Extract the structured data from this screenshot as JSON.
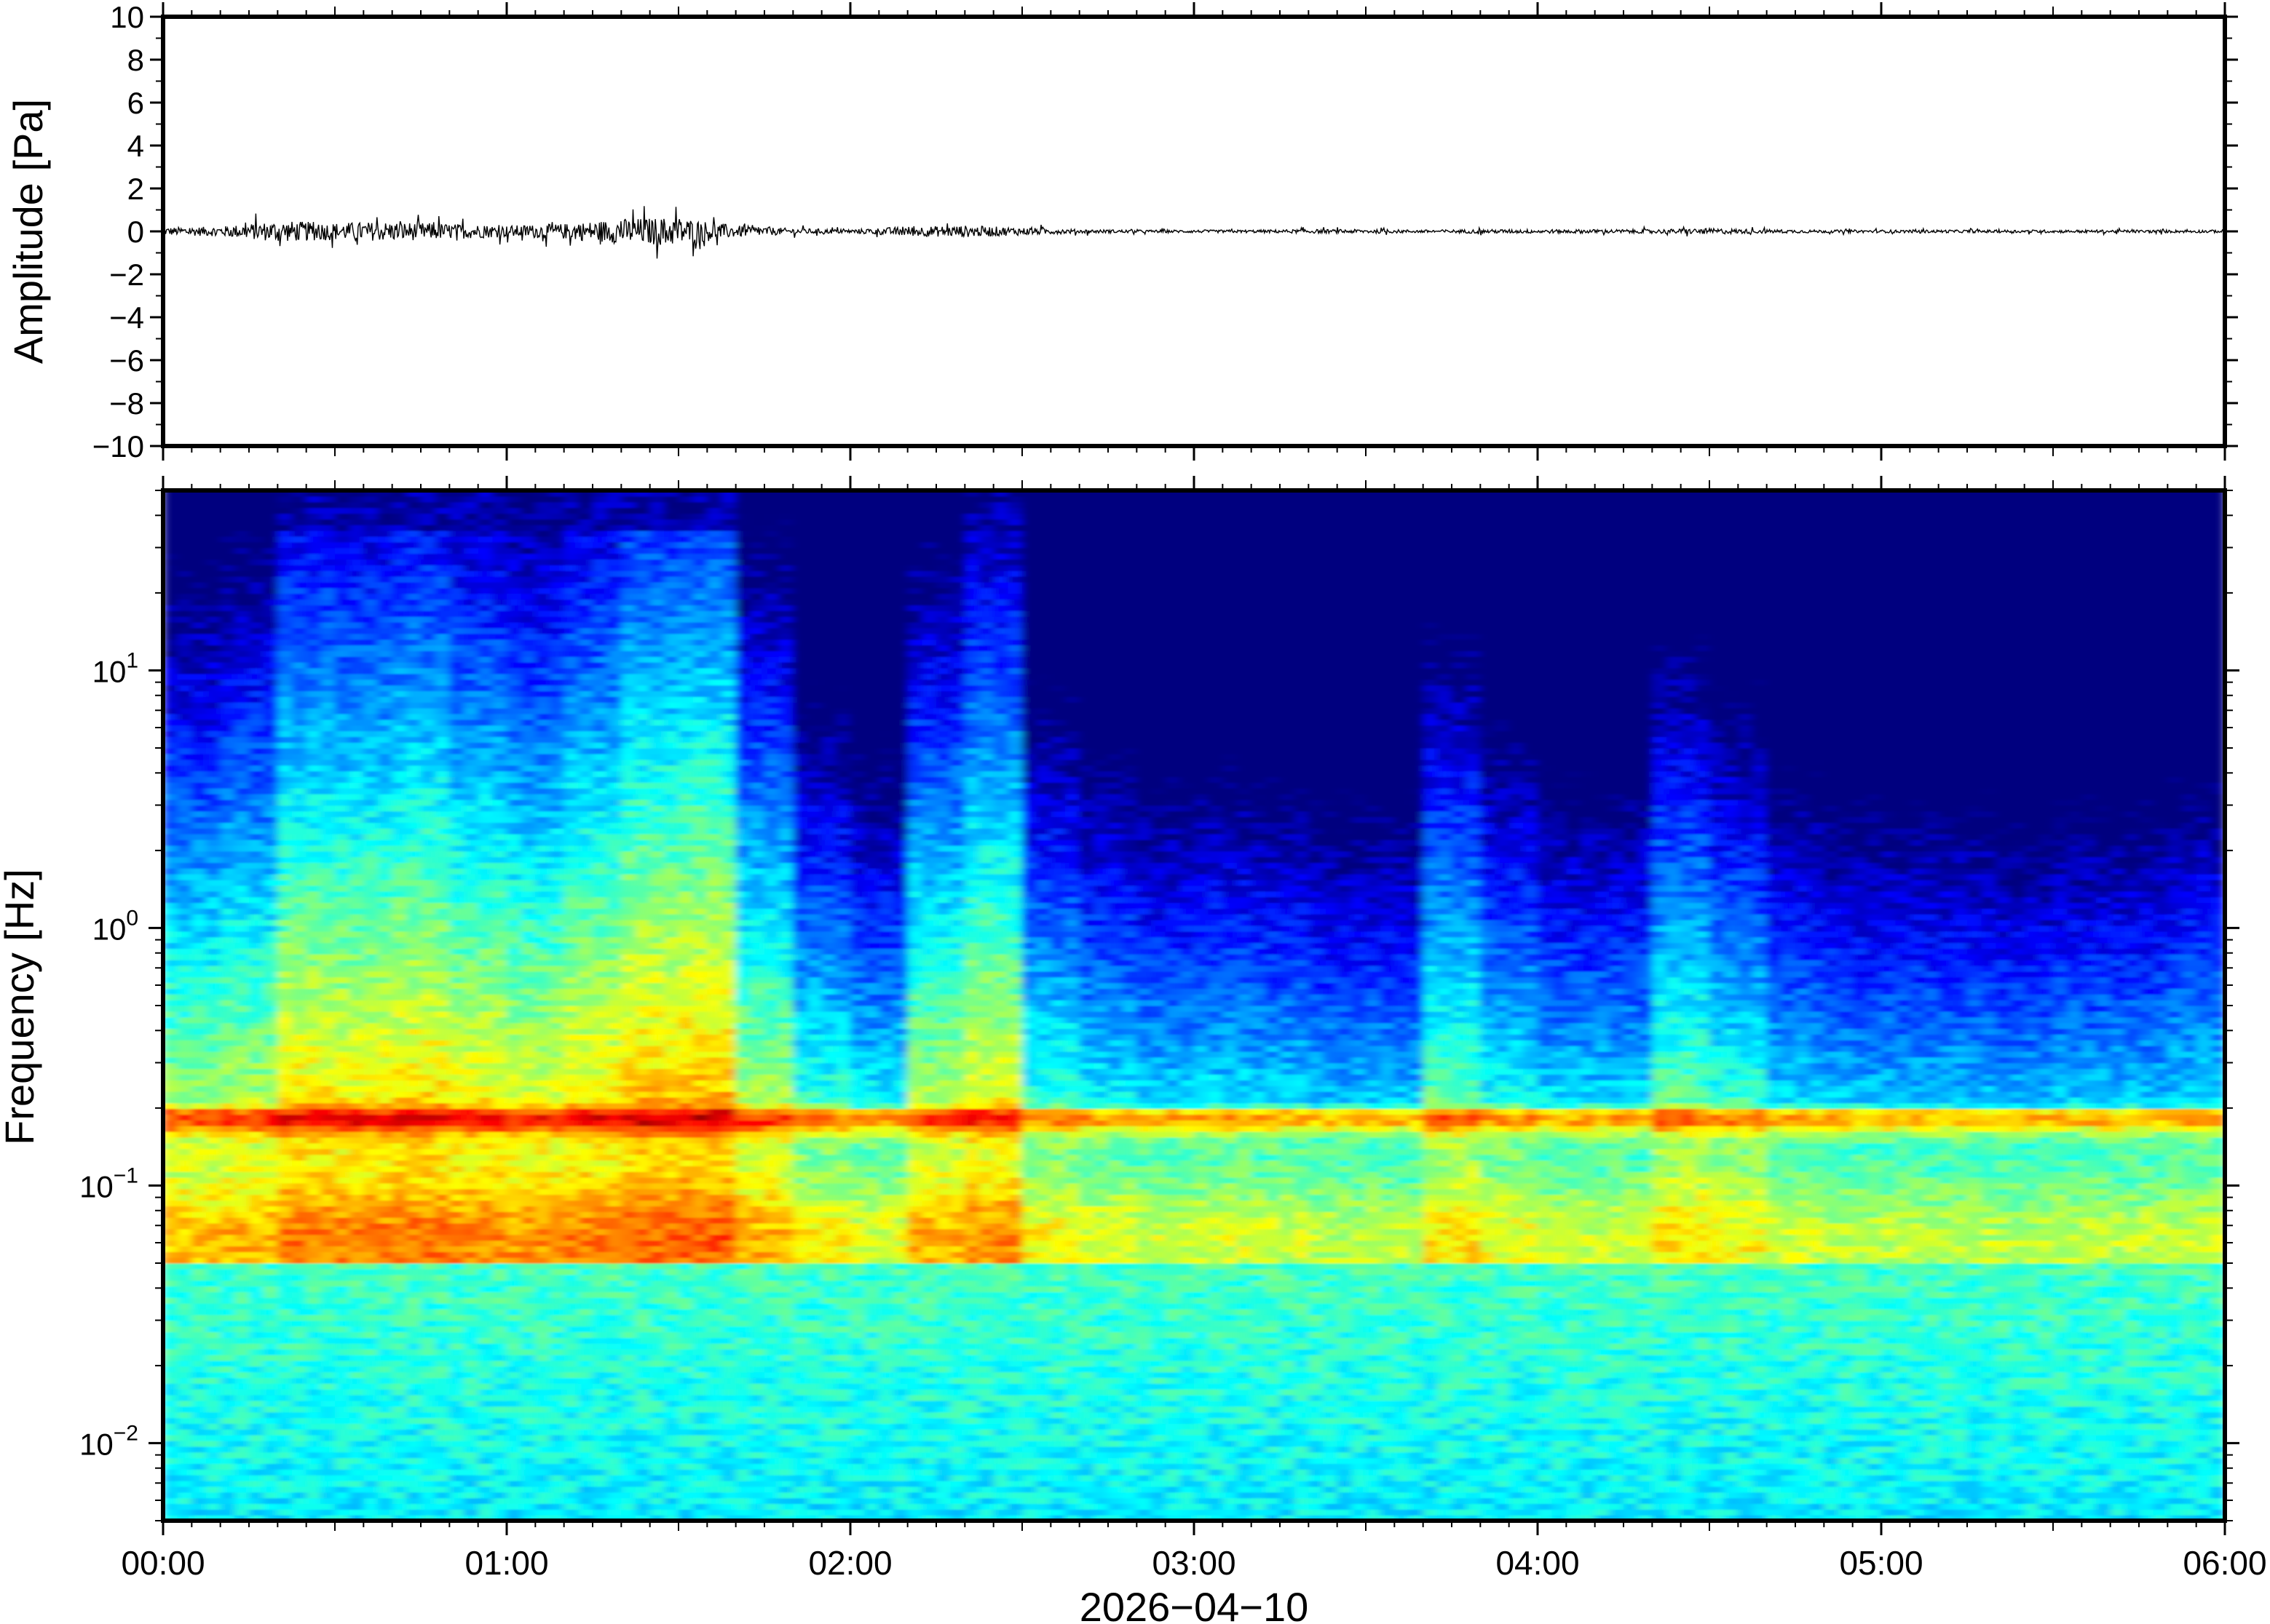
{
  "chart_data": [
    {
      "type": "line",
      "ylabel": "Amplitude [Pa]",
      "ylim": [
        -10,
        10
      ],
      "yticks": [
        10,
        8,
        6,
        4,
        2,
        0,
        -2,
        -4,
        -6,
        -8,
        -10
      ],
      "ytick_labels": [
        "10",
        "8",
        "6",
        "4",
        "2",
        "0",
        "−2",
        "−4",
        "−6",
        "−8",
        "−10"
      ],
      "xlim": [
        "00:00",
        "06:00"
      ],
      "grid": false,
      "series": [
        {
          "color": "#000000",
          "x": [
            "00:00",
            "00:10",
            "00:20",
            "00:30",
            "00:40",
            "00:50",
            "01:00",
            "01:10",
            "01:20",
            "01:30",
            "01:40",
            "01:50",
            "02:00",
            "02:10",
            "02:20",
            "02:30",
            "02:40",
            "02:50",
            "03:00",
            "03:10",
            "03:20",
            "03:30",
            "03:40",
            "03:50",
            "04:00",
            "04:10",
            "04:20",
            "04:30",
            "04:40",
            "04:50",
            "05:00",
            "05:10",
            "05:20",
            "05:30",
            "05:40",
            "05:50",
            "06:00"
          ],
          "values": [
            0.4,
            0.5,
            1.1,
            0.9,
            1.0,
            0.8,
            0.6,
            0.8,
            1.3,
            1.5,
            0.6,
            0.3,
            0.2,
            0.5,
            0.6,
            0.4,
            0.2,
            0.15,
            0.15,
            0.15,
            0.2,
            0.2,
            0.15,
            0.2,
            0.2,
            0.2,
            0.2,
            0.3,
            0.2,
            0.15,
            0.15,
            0.15,
            0.15,
            0.15,
            0.15,
            0.15,
            0.15
          ]
        }
      ]
    },
    {
      "type": "heatmap",
      "ylabel": "Frequency [Hz]",
      "xlabel": "2026−04−10",
      "yscale": "log",
      "ylim": [
        0.005,
        50
      ],
      "yticks": [
        10,
        1,
        0.1,
        0.01
      ],
      "ytick_labels": [
        {
          "base": "10",
          "exp": "1"
        },
        {
          "base": "10",
          "exp": "0"
        },
        {
          "base": "10",
          "exp": "−1"
        },
        {
          "base": "10",
          "exp": "−2"
        }
      ],
      "xlim": [
        "00:00",
        "06:00"
      ],
      "xticks": [
        "00:00",
        "01:00",
        "02:00",
        "03:00",
        "04:00",
        "05:00",
        "06:00"
      ],
      "colormap": [
        "#00007f",
        "#0000ff",
        "#007fff",
        "#00ffff",
        "#7fff7f",
        "#ffff00",
        "#ff7f00",
        "#ff0000",
        "#7f0000"
      ],
      "grid": false
    }
  ]
}
